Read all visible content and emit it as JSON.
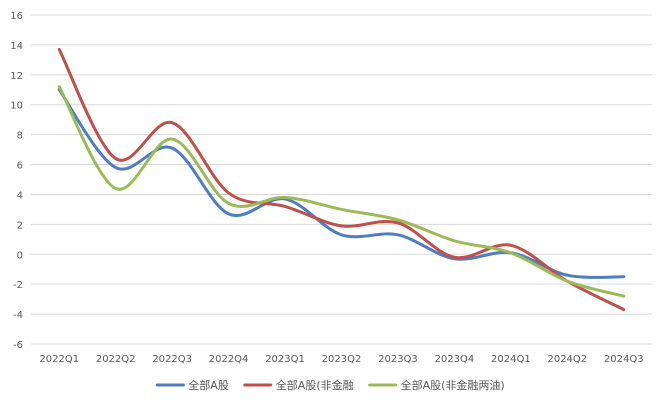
{
  "chart_data": {
    "type": "line",
    "title": "",
    "xlabel": "",
    "ylabel": "",
    "categories": [
      "2022Q1",
      "2022Q2",
      "2022Q3",
      "2022Q4",
      "2023Q1",
      "2023Q2",
      "2023Q3",
      "2023Q4",
      "2024Q1",
      "2024Q2",
      "2024Q3"
    ],
    "ylim": [
      -6,
      16
    ],
    "yticks": [
      -6,
      -4,
      -2,
      0,
      2,
      4,
      6,
      8,
      10,
      12,
      14,
      16
    ],
    "grid": true,
    "legend_position": "bottom",
    "series": [
      {
        "name": "全部A股",
        "color": "#4f7dbf",
        "values": [
          11.0,
          5.8,
          7.1,
          2.7,
          3.7,
          1.3,
          1.3,
          -0.3,
          0.1,
          -1.4,
          -1.5
        ]
      },
      {
        "name": "全部A股(非金融",
        "color": "#c0504d",
        "values": [
          13.7,
          6.4,
          8.8,
          4.1,
          3.2,
          1.9,
          2.1,
          -0.2,
          0.6,
          -1.8,
          -3.7
        ]
      },
      {
        "name": "全部A股(非金融两油)",
        "color": "#9bbb59",
        "values": [
          11.2,
          4.4,
          7.7,
          3.4,
          3.8,
          3.0,
          2.3,
          0.9,
          0.1,
          -1.8,
          -2.8
        ]
      }
    ]
  }
}
